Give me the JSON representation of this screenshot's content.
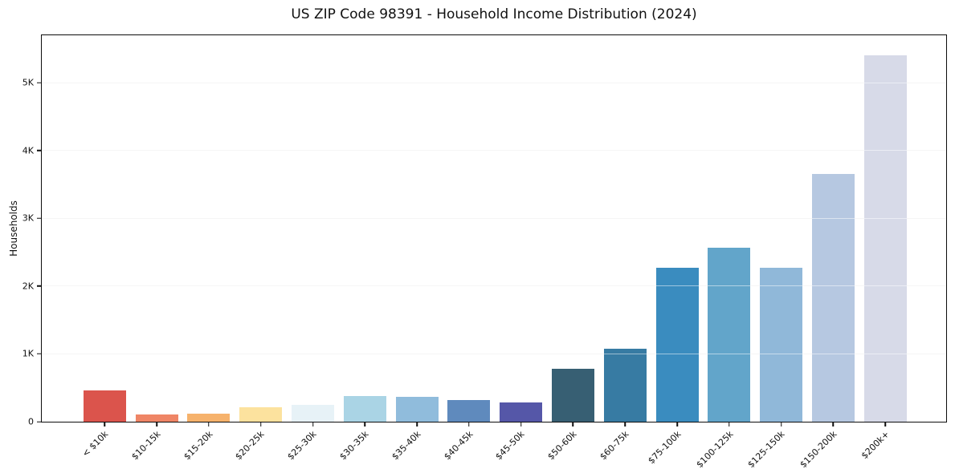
{
  "figure": {
    "background": "#ffffff",
    "spine_color": "#0d0d0d",
    "gridline_color": "#ebebeb"
  },
  "chart_data": {
    "type": "bar",
    "title": "US ZIP Code 98391 - Household Income Distribution (2024)",
    "xlabel": "",
    "ylabel": "Households",
    "categories": [
      "< $10k",
      "$10-15k",
      "$15-20k",
      "$20-25k",
      "$25-30k",
      "$30-35k",
      "$35-40k",
      "$40-45k",
      "$45-50k",
      "$50-60k",
      "$60-75k",
      "$75-100k",
      "$100-125k",
      "$125-150k",
      "$150-200k",
      "$200k+"
    ],
    "values": [
      460,
      110,
      120,
      215,
      245,
      380,
      365,
      320,
      285,
      780,
      1080,
      2270,
      2570,
      2270,
      3650,
      5400
    ],
    "bar_colors": [
      "#db544c",
      "#ef8566",
      "#f6b26c",
      "#fce29e",
      "#e7f2f7",
      "#aad4e5",
      "#90bcdc",
      "#5f8abd",
      "#5557a8",
      "#375f73",
      "#377ba3",
      "#3a8cbf",
      "#62a5ca",
      "#90b8d9",
      "#b6c8e1",
      "#d7dae8"
    ],
    "ylim": [
      0,
      5700
    ],
    "yticks": [
      {
        "value": 0,
        "label": "0"
      },
      {
        "value": 1000,
        "label": "1K"
      },
      {
        "value": 2000,
        "label": "2K"
      },
      {
        "value": 3000,
        "label": "3K"
      },
      {
        "value": 4000,
        "label": "4K"
      },
      {
        "value": 5000,
        "label": "5K"
      }
    ],
    "grid": "horizontal",
    "legend": null,
    "x_tick_rotation_deg": 45
  }
}
